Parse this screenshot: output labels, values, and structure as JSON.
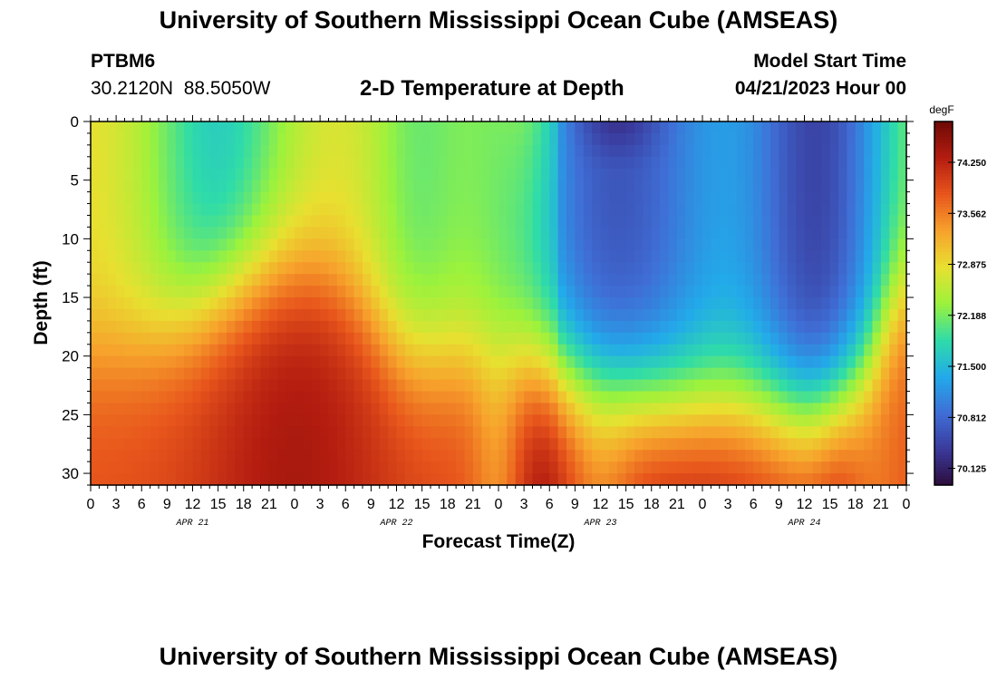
{
  "header": {
    "title": "University of Southern Mississippi Ocean Cube (AMSEAS)",
    "station": "PTBM6",
    "coords": "30.2120N  88.5050W",
    "subtitle": "2-D Temperature at Depth",
    "model_start_label": "Model Start Time",
    "model_start_value": "04/21/2023 Hour 00"
  },
  "footer": {
    "title": "University of Southern Mississippi Ocean Cube (AMSEAS)"
  },
  "chart_data": {
    "type": "heatmap",
    "title": "2-D Temperature at Depth",
    "xlabel": "Forecast Time(Z)",
    "ylabel": "Depth (ft)",
    "x_hours_range": [
      0,
      96
    ],
    "y_range": [
      0,
      31
    ],
    "y_reversed": true,
    "x_tick_labels": [
      "0",
      "3",
      "6",
      "9",
      "12",
      "15",
      "18",
      "21",
      "0",
      "3",
      "6",
      "9",
      "12",
      "15",
      "18",
      "21",
      "0",
      "3",
      "6",
      "9",
      "12",
      "15",
      "18",
      "21",
      "0",
      "3",
      "6",
      "9",
      "12",
      "15",
      "18",
      "21",
      "0"
    ],
    "y_ticks": [
      0,
      5,
      10,
      15,
      20,
      25,
      30
    ],
    "date_labels": [
      "APR 21",
      "APR 22",
      "APR 23",
      "APR 24"
    ],
    "colorbar": {
      "unit": "degF",
      "range": [
        69.9,
        74.8
      ],
      "tick_values": [
        74.25,
        73.562,
        72.875,
        72.188,
        71.5,
        70.812,
        70.125
      ],
      "tick_labels": [
        "74.250",
        "73.562",
        "72.875",
        "72.188",
        "71.500",
        "70.812",
        "70.125"
      ],
      "colors": [
        "#2c0c3a",
        "#3a3a9c",
        "#3f6fd6",
        "#22aaea",
        "#2fdca8",
        "#9cf23c",
        "#e8e030",
        "#f7a22c",
        "#e8561c",
        "#b51d10",
        "#6e0a06"
      ]
    }
  }
}
